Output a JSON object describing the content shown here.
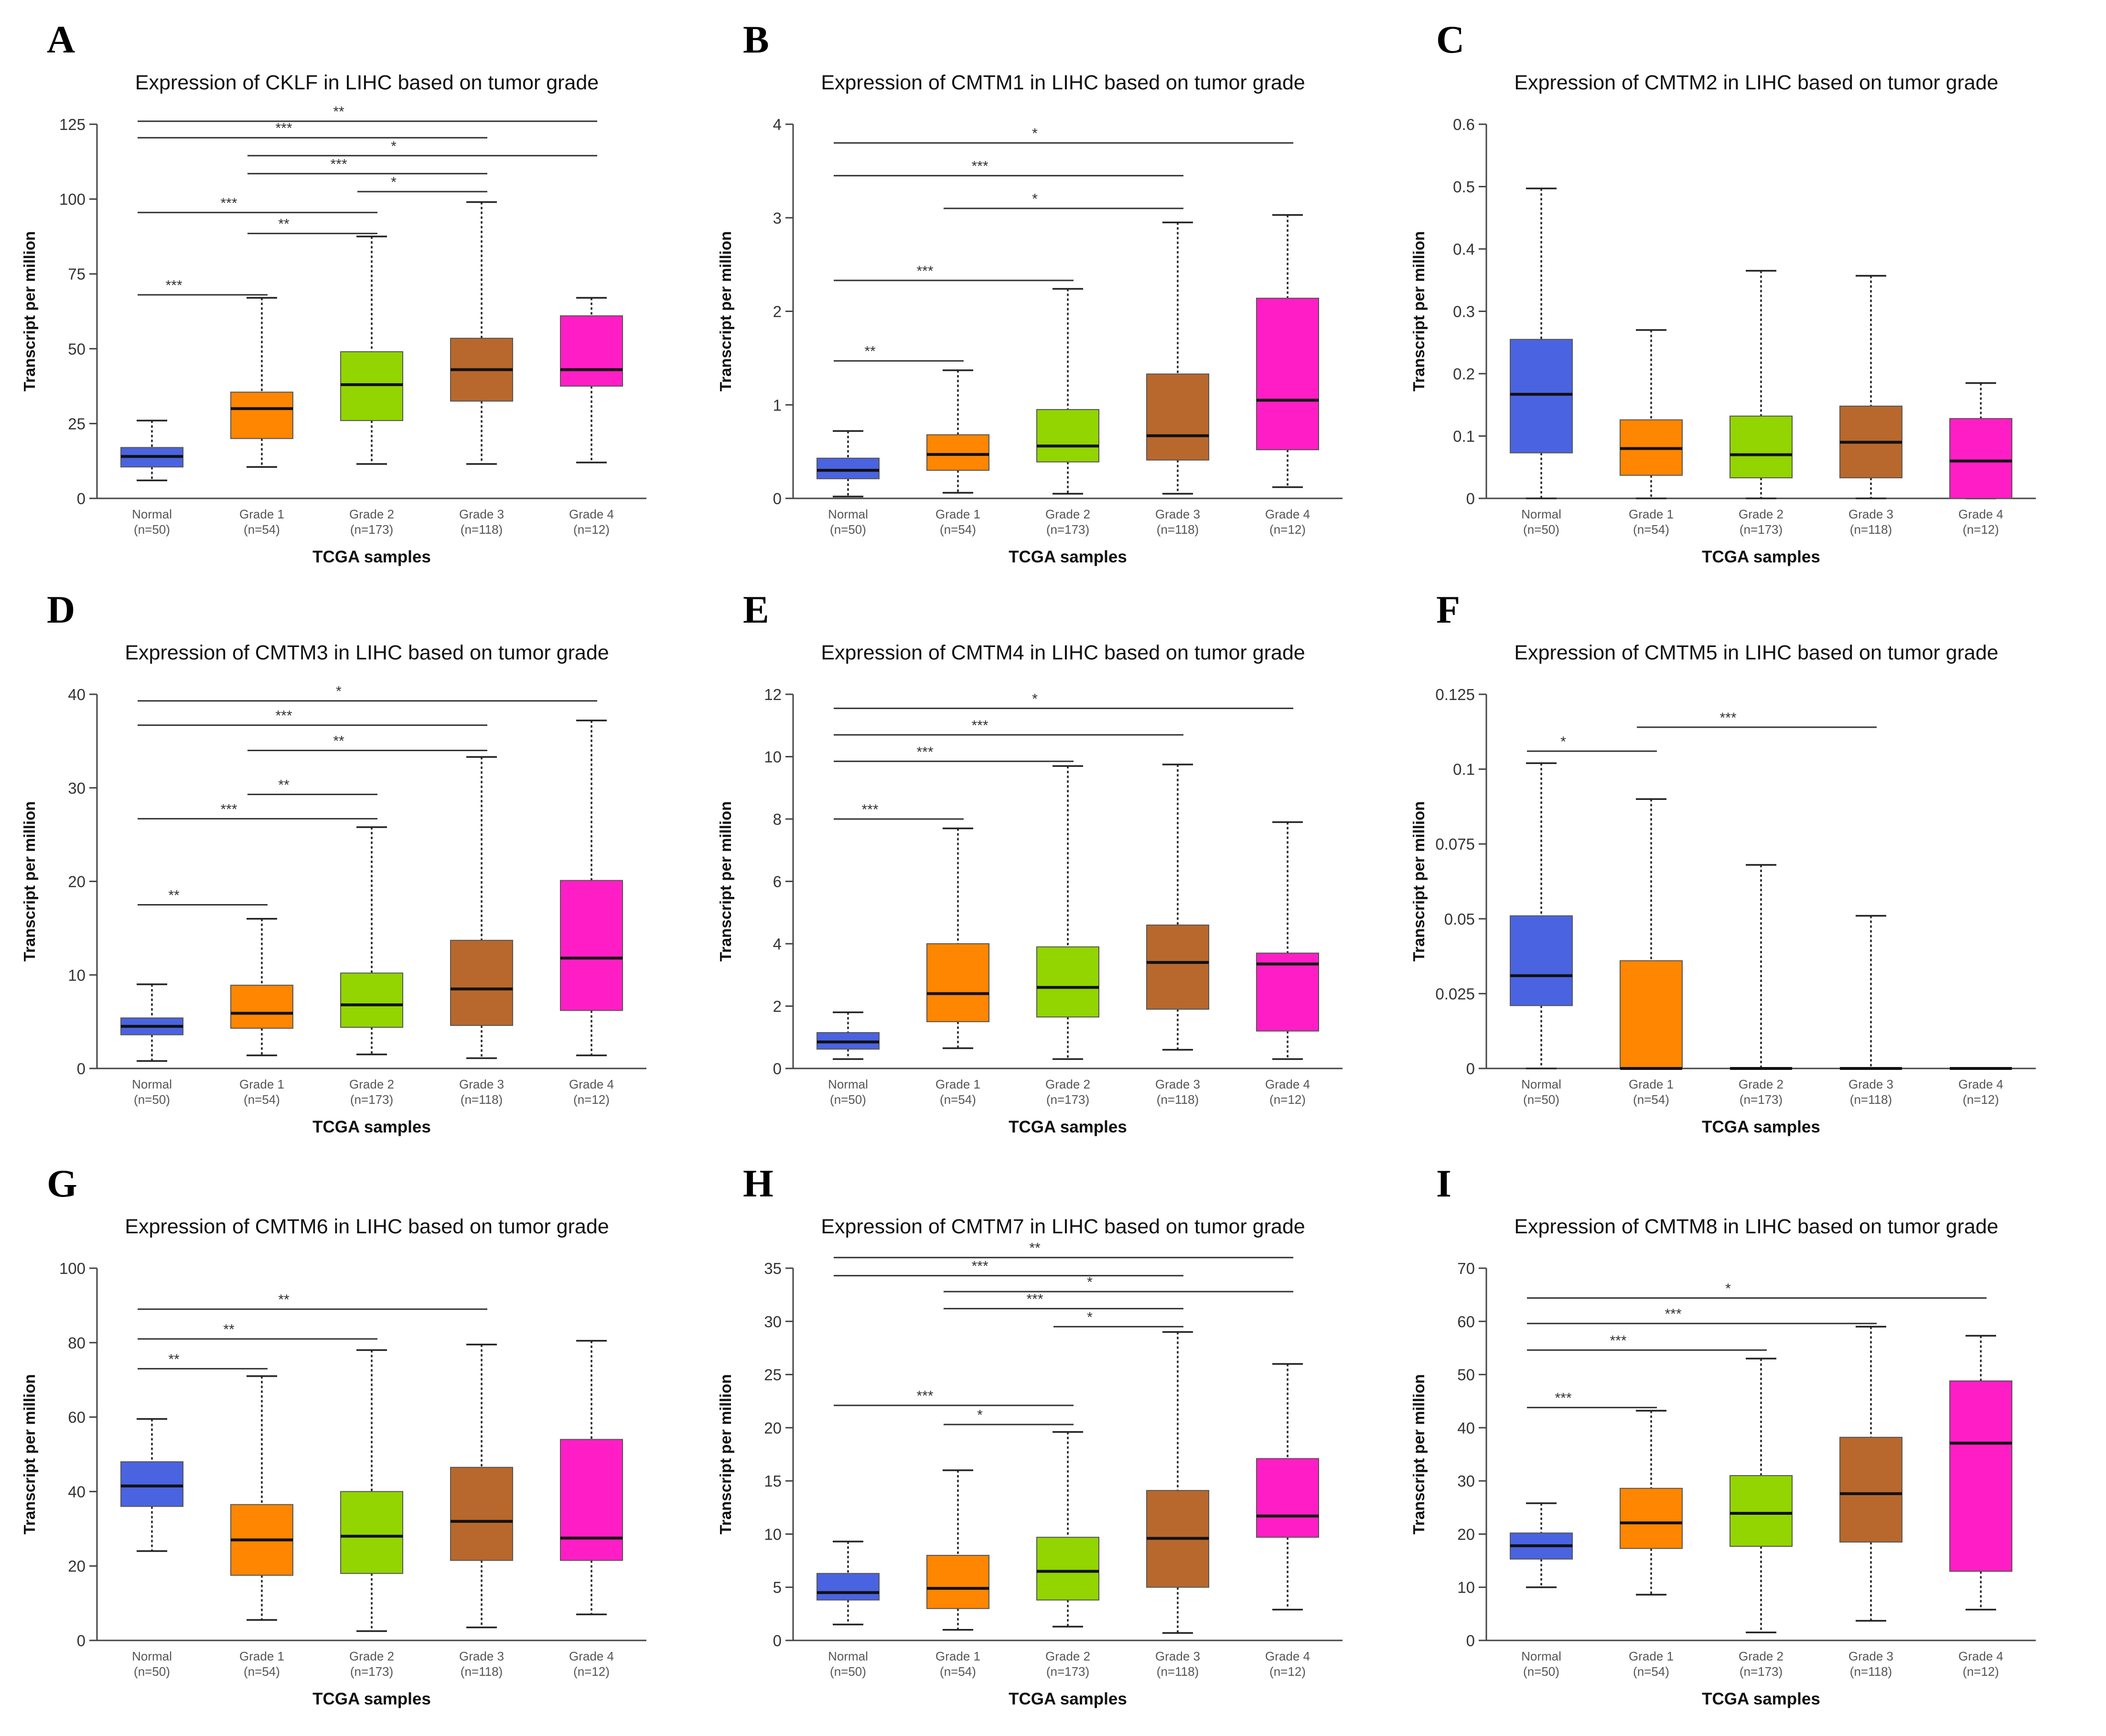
{
  "figure": {
    "xlabel": "TCGA samples",
    "ylabel": "Transcript per million",
    "categories": [
      "Normal",
      "Grade 1",
      "Grade 2",
      "Grade 3",
      "Grade 4"
    ],
    "category_counts": [
      "(n=50)",
      "(n=54)",
      "(n=173)",
      "(n=118)",
      "(n=12)"
    ],
    "colors": [
      "#4a63e0",
      "#fe8600",
      "#92d500",
      "#b8682c",
      "#ff1ec5"
    ]
  },
  "chart_data": [
    {
      "panel": "A",
      "type": "boxplot",
      "title": "Expression of CKLF in LIHC based on tumor grade",
      "ylim": [
        0,
        125
      ],
      "yticks": [
        0,
        25,
        50,
        75,
        100,
        125
      ],
      "tick_labels": [
        "0",
        "25",
        "50",
        "75",
        "100",
        "125"
      ],
      "boxes": [
        {
          "min": 6,
          "q1": 10.5,
          "median": 14,
          "q3": 17,
          "max": 26
        },
        {
          "min": 10.5,
          "q1": 20,
          "median": 30,
          "q3": 35.5,
          "max": 67
        },
        {
          "min": 11.5,
          "q1": 26,
          "median": 38,
          "q3": 49,
          "max": 87.5
        },
        {
          "min": 11.5,
          "q1": 32.5,
          "median": 43,
          "q3": 53.5,
          "max": 99
        },
        {
          "min": 12,
          "q1": 37.5,
          "median": 43,
          "q3": 61,
          "max": 67
        }
      ],
      "comparisons": [
        {
          "from": 0,
          "to": 4,
          "label": "**",
          "y": 126
        },
        {
          "from": 0,
          "to": 3,
          "label": "***",
          "y": 120.5
        },
        {
          "from": 1,
          "to": 4,
          "label": "*",
          "y": 114.5
        },
        {
          "from": 1,
          "to": 3,
          "label": "***",
          "y": 108.5
        },
        {
          "from": 2,
          "to": 3,
          "label": "*",
          "y": 102.5
        },
        {
          "from": 0,
          "to": 2,
          "label": "***",
          "y": 95.5
        },
        {
          "from": 1,
          "to": 2,
          "label": "**",
          "y": 88.5
        },
        {
          "from": 0,
          "to": 1,
          "label": "***",
          "y": 68
        }
      ]
    },
    {
      "panel": "B",
      "type": "boxplot",
      "title": "Expression of CMTM1 in LIHC based on tumor grade",
      "ylim": [
        0,
        4
      ],
      "yticks": [
        0,
        1,
        2,
        3,
        4
      ],
      "tick_labels": [
        "0",
        "1",
        "2",
        "3",
        "4"
      ],
      "boxes": [
        {
          "min": 0.02,
          "q1": 0.21,
          "median": 0.3,
          "q3": 0.43,
          "max": 0.72
        },
        {
          "min": 0.06,
          "q1": 0.3,
          "median": 0.47,
          "q3": 0.68,
          "max": 1.37
        },
        {
          "min": 0.05,
          "q1": 0.39,
          "median": 0.56,
          "q3": 0.95,
          "max": 2.24
        },
        {
          "min": 0.05,
          "q1": 0.41,
          "median": 0.67,
          "q3": 1.33,
          "max": 2.95
        },
        {
          "min": 0.12,
          "q1": 0.52,
          "median": 1.05,
          "q3": 2.14,
          "max": 3.03
        }
      ],
      "comparisons": [
        {
          "from": 0,
          "to": 4,
          "label": "*",
          "y": 3.8
        },
        {
          "from": 0,
          "to": 3,
          "label": "***",
          "y": 3.45
        },
        {
          "from": 1,
          "to": 3,
          "label": "*",
          "y": 3.1
        },
        {
          "from": 0,
          "to": 2,
          "label": "***",
          "y": 2.33
        },
        {
          "from": 0,
          "to": 1,
          "label": "**",
          "y": 1.47
        }
      ]
    },
    {
      "panel": "C",
      "type": "boxplot",
      "title": "Expression of CMTM2 in LIHC based on tumor grade",
      "ylim": [
        0,
        0.6
      ],
      "yticks": [
        0,
        0.1,
        0.2,
        0.3,
        0.4,
        0.5,
        0.6
      ],
      "tick_labels": [
        "0",
        "0.1",
        "0.2",
        "0.3",
        "0.4",
        "0.5",
        "0.6"
      ],
      "boxes": [
        {
          "min": 0,
          "q1": 0.073,
          "median": 0.167,
          "q3": 0.255,
          "max": 0.497
        },
        {
          "min": 0,
          "q1": 0.037,
          "median": 0.08,
          "q3": 0.126,
          "max": 0.27
        },
        {
          "min": 0,
          "q1": 0.033,
          "median": 0.07,
          "q3": 0.132,
          "max": 0.365
        },
        {
          "min": 0,
          "q1": 0.033,
          "median": 0.09,
          "q3": 0.148,
          "max": 0.357
        },
        {
          "min": 0,
          "q1": 0,
          "median": 0.06,
          "q3": 0.128,
          "max": 0.185
        }
      ],
      "comparisons": []
    },
    {
      "panel": "D",
      "type": "boxplot",
      "title": "Expression of CMTM3 in LIHC based on tumor grade",
      "ylim": [
        0,
        40
      ],
      "yticks": [
        0,
        10,
        20,
        30,
        40
      ],
      "tick_labels": [
        "0",
        "10",
        "20",
        "30",
        "40"
      ],
      "boxes": [
        {
          "min": 0.8,
          "q1": 3.6,
          "median": 4.5,
          "q3": 5.4,
          "max": 9
        },
        {
          "min": 1.4,
          "q1": 4.3,
          "median": 5.9,
          "q3": 8.9,
          "max": 16
        },
        {
          "min": 1.5,
          "q1": 4.4,
          "median": 6.8,
          "q3": 10.2,
          "max": 25.8
        },
        {
          "min": 1.1,
          "q1": 4.6,
          "median": 8.5,
          "q3": 13.7,
          "max": 33.3
        },
        {
          "min": 1.4,
          "q1": 6.2,
          "median": 11.8,
          "q3": 20.1,
          "max": 37.2
        }
      ],
      "comparisons": [
        {
          "from": 0,
          "to": 4,
          "label": "*",
          "y": 39.3
        },
        {
          "from": 0,
          "to": 3,
          "label": "***",
          "y": 36.7
        },
        {
          "from": 1,
          "to": 3,
          "label": "**",
          "y": 34
        },
        {
          "from": 1,
          "to": 2,
          "label": "**",
          "y": 29.3
        },
        {
          "from": 0,
          "to": 2,
          "label": "***",
          "y": 26.7
        },
        {
          "from": 0,
          "to": 1,
          "label": "**",
          "y": 17.5
        }
      ]
    },
    {
      "panel": "E",
      "type": "boxplot",
      "title": "Expression of CMTM4 in LIHC based on tumor grade",
      "ylim": [
        0,
        12
      ],
      "yticks": [
        0,
        2,
        4,
        6,
        8,
        10,
        12
      ],
      "tick_labels": [
        "0",
        "2",
        "4",
        "6",
        "8",
        "10",
        "12"
      ],
      "boxes": [
        {
          "min": 0.3,
          "q1": 0.62,
          "median": 0.85,
          "q3": 1.15,
          "max": 1.8
        },
        {
          "min": 0.65,
          "q1": 1.5,
          "median": 2.4,
          "q3": 4,
          "max": 7.7
        },
        {
          "min": 0.3,
          "q1": 1.65,
          "median": 2.6,
          "q3": 3.9,
          "max": 9.7
        },
        {
          "min": 0.6,
          "q1": 1.9,
          "median": 3.4,
          "q3": 4.6,
          "max": 9.75
        },
        {
          "min": 0.3,
          "q1": 1.2,
          "median": 3.35,
          "q3": 3.7,
          "max": 7.9
        }
      ],
      "comparisons": [
        {
          "from": 0,
          "to": 4,
          "label": "*",
          "y": 11.55
        },
        {
          "from": 0,
          "to": 3,
          "label": "***",
          "y": 10.7
        },
        {
          "from": 0,
          "to": 2,
          "label": "***",
          "y": 9.85
        },
        {
          "from": 0,
          "to": 1,
          "label": "***",
          "y": 8
        }
      ]
    },
    {
      "panel": "F",
      "type": "boxplot",
      "title": "Expression of CMTM5 in LIHC based on tumor grade",
      "ylim": [
        0,
        0.125
      ],
      "yticks": [
        0,
        0.025,
        0.05,
        0.075,
        0.1,
        0.125
      ],
      "tick_labels": [
        "0",
        "0.025",
        "0.05",
        "0.075",
        "0.1",
        "0.125"
      ],
      "boxes": [
        {
          "min": 0,
          "q1": 0.021,
          "median": 0.031,
          "q3": 0.051,
          "max": 0.102
        },
        {
          "min": 0,
          "q1": 0,
          "median": 0,
          "q3": 0.036,
          "max": 0.09
        },
        {
          "min": 0,
          "q1": 0,
          "median": 0,
          "q3": 0,
          "max": 0.068
        },
        {
          "min": 0,
          "q1": 0,
          "median": 0,
          "q3": 0,
          "max": 0.051
        },
        {
          "min": 0,
          "q1": 0,
          "median": 0,
          "q3": 0,
          "max": 0
        }
      ],
      "comparisons": [
        {
          "from": 1,
          "to": 3,
          "label": "***",
          "y": 0.114
        },
        {
          "from": 0,
          "to": 1,
          "label": "*",
          "y": 0.106
        }
      ]
    },
    {
      "panel": "G",
      "type": "boxplot",
      "title": "Expression of CMTM6 in LIHC based on tumor grade",
      "ylim": [
        0,
        100
      ],
      "yticks": [
        0,
        20,
        40,
        60,
        80,
        100
      ],
      "tick_labels": [
        "0",
        "20",
        "40",
        "60",
        "80",
        "100"
      ],
      "boxes": [
        {
          "min": 24,
          "q1": 36,
          "median": 41.5,
          "q3": 48,
          "max": 59.5
        },
        {
          "min": 5.5,
          "q1": 17.5,
          "median": 27,
          "q3": 36.5,
          "max": 71
        },
        {
          "min": 2.5,
          "q1": 18,
          "median": 28,
          "q3": 40,
          "max": 78
        },
        {
          "min": 3.5,
          "q1": 21.5,
          "median": 32,
          "q3": 46.5,
          "max": 79.5
        },
        {
          "min": 7,
          "q1": 21.5,
          "median": 27.5,
          "q3": 54,
          "max": 80.5
        }
      ],
      "comparisons": [
        {
          "from": 0,
          "to": 3,
          "label": "**",
          "y": 89
        },
        {
          "from": 0,
          "to": 2,
          "label": "**",
          "y": 81
        },
        {
          "from": 0,
          "to": 1,
          "label": "**",
          "y": 73
        }
      ]
    },
    {
      "panel": "H",
      "type": "boxplot",
      "title": "Expression of CMTM7 in LIHC based on tumor grade",
      "ylim": [
        0,
        35
      ],
      "yticks": [
        0,
        5,
        10,
        15,
        20,
        25,
        30,
        35
      ],
      "tick_labels": [
        "0",
        "5",
        "10",
        "15",
        "20",
        "25",
        "30",
        "35"
      ],
      "boxes": [
        {
          "min": 1.5,
          "q1": 3.8,
          "median": 4.5,
          "q3": 6.3,
          "max": 9.3
        },
        {
          "min": 1,
          "q1": 3,
          "median": 4.9,
          "q3": 8,
          "max": 16
        },
        {
          "min": 1.3,
          "q1": 3.8,
          "median": 6.5,
          "q3": 9.7,
          "max": 19.6
        },
        {
          "min": 0.7,
          "q1": 5,
          "median": 9.6,
          "q3": 14.1,
          "max": 29
        },
        {
          "min": 2.9,
          "q1": 9.7,
          "median": 11.7,
          "q3": 17.1,
          "max": 26
        }
      ],
      "comparisons": [
        {
          "from": 0,
          "to": 4,
          "label": "**",
          "y": 36
        },
        {
          "from": 0,
          "to": 3,
          "label": "***",
          "y": 34.3
        },
        {
          "from": 1,
          "to": 4,
          "label": "*",
          "y": 32.8
        },
        {
          "from": 1,
          "to": 3,
          "label": "***",
          "y": 31.2
        },
        {
          "from": 2,
          "to": 3,
          "label": "*",
          "y": 29.5
        },
        {
          "from": 0,
          "to": 2,
          "label": "***",
          "y": 22.1
        },
        {
          "from": 1,
          "to": 2,
          "label": "*",
          "y": 20.3
        }
      ]
    },
    {
      "panel": "I",
      "type": "boxplot",
      "title": "Expression of CMTM8 in LIHC based on tumor grade",
      "ylim": [
        0,
        70
      ],
      "yticks": [
        0,
        10,
        20,
        30,
        40,
        50,
        60,
        70
      ],
      "tick_labels": [
        "0",
        "10",
        "20",
        "30",
        "40",
        "50",
        "60",
        "70"
      ],
      "boxes": [
        {
          "min": 10,
          "q1": 15.3,
          "median": 17.8,
          "q3": 20.2,
          "max": 25.8
        },
        {
          "min": 8.6,
          "q1": 17.3,
          "median": 22.1,
          "q3": 28.6,
          "max": 43.2
        },
        {
          "min": 1.5,
          "q1": 17.7,
          "median": 23.9,
          "q3": 31,
          "max": 53
        },
        {
          "min": 3.7,
          "q1": 18.5,
          "median": 27.6,
          "q3": 38.2,
          "max": 59
        },
        {
          "min": 5.8,
          "q1": 13,
          "median": 37.1,
          "q3": 48.8,
          "max": 57.3
        }
      ],
      "comparisons": [
        {
          "from": 0,
          "to": 4,
          "label": "*",
          "y": 64.4
        },
        {
          "from": 0,
          "to": 3,
          "label": "***",
          "y": 59.6
        },
        {
          "from": 0,
          "to": 2,
          "label": "***",
          "y": 54.6
        },
        {
          "from": 0,
          "to": 1,
          "label": "***",
          "y": 43.8
        }
      ]
    }
  ]
}
